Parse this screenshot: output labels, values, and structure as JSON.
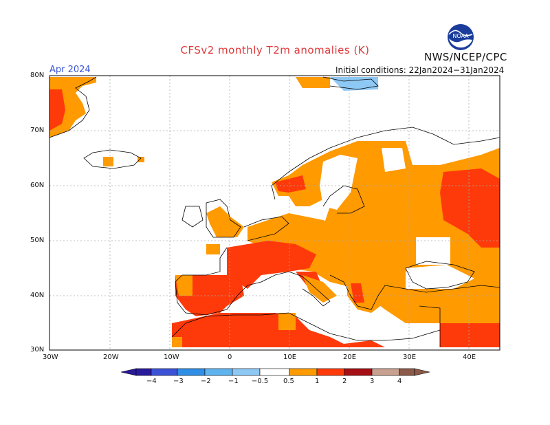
{
  "title": "CFSv2 monthly T2m anomalies (K)",
  "agency": "NWS/NCEP/CPC",
  "logo_text": "NOAA",
  "valid_month": "Apr 2024",
  "initial_conditions": "Initial conditions: 22Jan2024−31Jan2024",
  "lat_labels": [
    "80N",
    "70N",
    "60N",
    "50N",
    "40N",
    "30N"
  ],
  "lon_labels": [
    "30W",
    "20W",
    "10W",
    "0",
    "10E",
    "20E",
    "30E",
    "40E"
  ],
  "colorbar_labels": [
    "−4",
    "−3",
    "−2",
    "−1",
    "−0.5",
    "0.5",
    "1",
    "2",
    "3",
    "4"
  ],
  "colors": {
    "very_cold": "#2a1a9c",
    "cold_3": "#3b52d6",
    "cold_2": "#2f8ee6",
    "cold_1": "#5fb4ef",
    "cold_05": "#8ec8f4",
    "neutral": "#ffffff",
    "warm_05": "#ff9a00",
    "warm_1": "#ff3a0a",
    "warm_2": "#a50f15",
    "warm_3": "#c8a090",
    "very_warm": "#8b5a48",
    "coastline": "#000000",
    "grid": "#aaaaaa"
  }
}
